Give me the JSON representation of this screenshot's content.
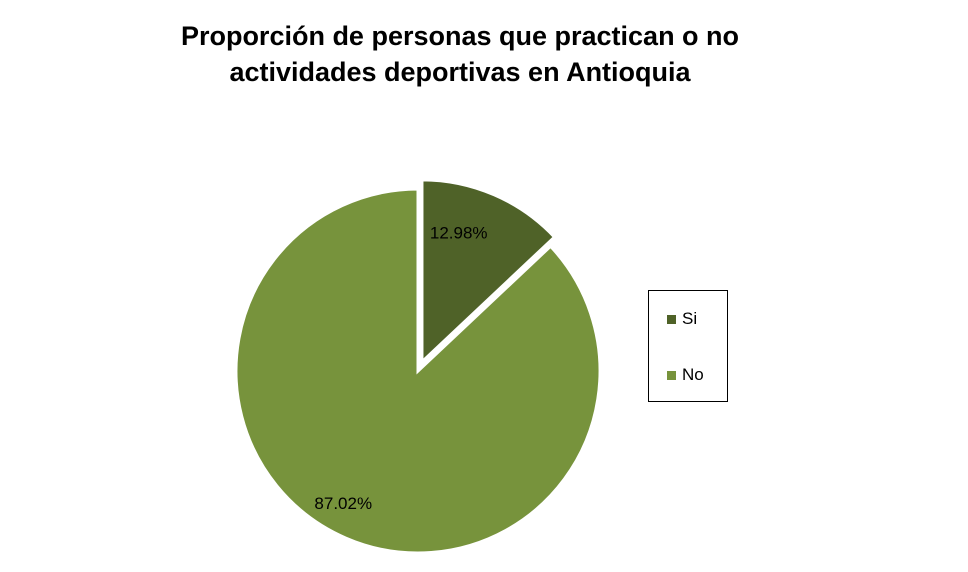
{
  "chart_data": {
    "type": "pie",
    "title_lines": [
      "Proporción de personas que practican o no",
      "actividades deportivas en Antioquia"
    ],
    "slices": [
      {
        "label": "Si",
        "value": 12.98,
        "display": "12.98%",
        "color": "#4f6228",
        "exploded": true
      },
      {
        "label": "No",
        "value": 87.02,
        "display": "87.02%",
        "color": "#77933c",
        "exploded": false
      }
    ],
    "legend_position": "right"
  }
}
